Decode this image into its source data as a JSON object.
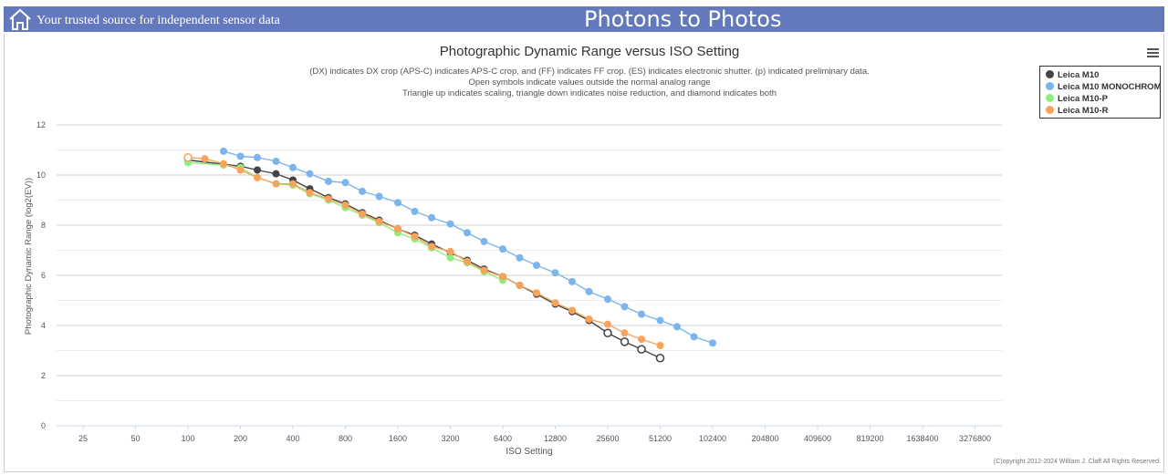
{
  "header": {
    "tagline": "Your trusted source for independent sensor data",
    "site_title": "Photons to Photos",
    "home_icon": "home-icon",
    "background_color": "#6479bd"
  },
  "copyright": "(C)opyright 2012-2024 William J. Claff All Rights Reserved.",
  "menu_icon": "hamburger-menu-icon",
  "chart_data": {
    "type": "line",
    "title": "Photographic Dynamic Range versus ISO Setting",
    "subtitle_lines": [
      "(DX) indicates DX crop (APS-C) indicates APS-C crop, and (FF) indicates FF crop. (ES) indicates electronic shutter. (p) indicated preliminary data.",
      "Open symbols indicate values outside the normal analog range",
      "Triangle up indicates scaling, triangle down indicates noise reduction, and diamond indicates both"
    ],
    "xlabel": "ISO Setting",
    "ylabel": "Photographic Dynamic Range (log2(EV))",
    "x_scale": "log2",
    "x_ticks": [
      25,
      50,
      100,
      200,
      400,
      800,
      1600,
      3200,
      6400,
      12800,
      25600,
      51200,
      102400,
      204800,
      409600,
      819200,
      1638400,
      3276800
    ],
    "y_ticks": [
      0,
      2,
      4,
      6,
      8,
      10,
      12
    ],
    "ylim": [
      0,
      12
    ],
    "grid": true,
    "legend_position": "top-right",
    "series": [
      {
        "name": "Leica M10",
        "color": "#434348",
        "x": [
          100,
          200,
          250,
          320,
          400,
          500,
          640,
          800,
          1000,
          1250,
          1600,
          2000,
          2500,
          3200,
          4000,
          5000,
          6400,
          8000,
          10000,
          12800,
          16000,
          20000,
          25600,
          32000,
          40000,
          51200
        ],
        "y": [
          10.6,
          10.35,
          10.2,
          10.05,
          9.8,
          9.45,
          9.1,
          8.85,
          8.5,
          8.2,
          7.85,
          7.6,
          7.25,
          6.9,
          6.6,
          6.25,
          5.95,
          5.6,
          5.25,
          4.85,
          4.55,
          4.2,
          3.7,
          3.35,
          3.05,
          2.7
        ],
        "open": [
          false,
          false,
          false,
          false,
          false,
          false,
          false,
          false,
          false,
          false,
          false,
          false,
          false,
          false,
          false,
          false,
          false,
          false,
          false,
          false,
          false,
          false,
          true,
          true,
          true,
          true
        ]
      },
      {
        "name": "Leica M10 MONOCHROM",
        "color": "#7cb5ec",
        "x": [
          160,
          200,
          250,
          320,
          400,
          500,
          640,
          800,
          1000,
          1250,
          1600,
          2000,
          2500,
          3200,
          4000,
          5000,
          6400,
          8000,
          10000,
          12800,
          16000,
          20000,
          25600,
          32000,
          40000,
          51200,
          64000,
          80000,
          102400
        ],
        "y": [
          10.95,
          10.75,
          10.7,
          10.55,
          10.3,
          10.05,
          9.75,
          9.7,
          9.35,
          9.15,
          8.9,
          8.55,
          8.3,
          8.05,
          7.7,
          7.35,
          7.05,
          6.7,
          6.4,
          6.1,
          5.75,
          5.35,
          5.05,
          4.75,
          4.45,
          4.2,
          3.95,
          3.55,
          3.3
        ],
        "open": []
      },
      {
        "name": "Leica M10-P",
        "color": "#90ed7d",
        "x": [
          100,
          160,
          200,
          250,
          320,
          400,
          500,
          640,
          800,
          1000,
          1250,
          1600,
          2000,
          2500,
          3200,
          4000,
          5000,
          6400
        ],
        "y": [
          10.5,
          10.4,
          10.3,
          9.9,
          9.65,
          9.6,
          9.25,
          9.0,
          8.7,
          8.4,
          8.1,
          7.7,
          7.45,
          7.1,
          6.7,
          6.5,
          6.15,
          5.8
        ],
        "open": []
      },
      {
        "name": "Leica M10-R",
        "color": "#f7a35c",
        "x": [
          100,
          125,
          160,
          200,
          250,
          320,
          400,
          500,
          640,
          800,
          1000,
          1250,
          1600,
          2000,
          2500,
          3200,
          4000,
          5000,
          6400,
          8000,
          10000,
          12800,
          16000,
          20000,
          25600,
          32000,
          40000,
          51200
        ],
        "y": [
          10.7,
          10.65,
          10.45,
          10.2,
          9.9,
          9.65,
          9.65,
          9.3,
          9.05,
          8.8,
          8.45,
          8.15,
          7.85,
          7.55,
          7.15,
          6.95,
          6.55,
          6.2,
          5.95,
          5.6,
          5.3,
          4.9,
          4.6,
          4.25,
          4.05,
          3.7,
          3.45,
          3.2
        ],
        "open": [
          true,
          false,
          false,
          false,
          false,
          false,
          false,
          false,
          false,
          false,
          false,
          false,
          false,
          false,
          false,
          false,
          false,
          false,
          false,
          false,
          false,
          false,
          false,
          false,
          false,
          false,
          false,
          false
        ]
      }
    ]
  }
}
